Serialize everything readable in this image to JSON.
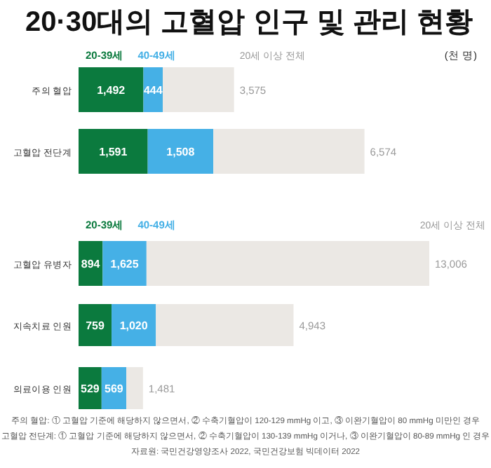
{
  "chart_data": [
    {
      "type": "bar",
      "orientation": "horizontal",
      "stacked": true,
      "legend": "top",
      "title": "20·30대의 고혈압 인구 및 관리 현황",
      "annotations": [
        "(천 명)"
      ],
      "categories": [
        "주의 혈압",
        "고혈압 전단계"
      ],
      "series": [
        {
          "name": "20-39세",
          "color": "#0b7a3e",
          "values": [
            1492,
            1591
          ],
          "value_labels": [
            "1,492",
            "1,591"
          ]
        },
        {
          "name": "40-49세",
          "color": "#45b0e6",
          "values": [
            444,
            1508
          ],
          "value_labels": [
            "444",
            "1,508"
          ]
        },
        {
          "name": "20세 이상 전체",
          "color": "#ebe8e4",
          "values": [
            1639,
            3475
          ]
        }
      ],
      "totals": [
        "3,575",
        "6,574"
      ]
    },
    {
      "type": "bar",
      "orientation": "horizontal",
      "stacked": true,
      "legend": "top",
      "categories": [
        "고혈압 유병자"
      ],
      "series": [
        {
          "name": "20-39세",
          "color": "#0b7a3e",
          "values": [
            894
          ],
          "value_labels": [
            "894"
          ]
        },
        {
          "name": "40-49세",
          "color": "#45b0e6",
          "values": [
            1625
          ],
          "value_labels": [
            "1,625"
          ]
        },
        {
          "name": "20세 이상 전체",
          "color": "#ebe8e4",
          "values": [
            10487
          ]
        }
      ],
      "totals": [
        "13,006"
      ]
    },
    {
      "type": "bar",
      "orientation": "horizontal",
      "stacked": true,
      "categories": [
        "지속치료 인원",
        "의료이용 인원"
      ],
      "series": [
        {
          "color": "#0b7a3e",
          "values": [
            759,
            529
          ],
          "value_labels": [
            "759",
            "529"
          ]
        },
        {
          "color": "#45b0e6",
          "values": [
            1020,
            569
          ],
          "value_labels": [
            "1,020",
            "569"
          ]
        },
        {
          "color": "#ebe8e4",
          "values": [
            3164,
            383
          ]
        }
      ],
      "totals": [
        "4,943",
        "1,481"
      ],
      "annotations": [
        "주의 혈압: ① 고혈압 기준에 해당하지 않으면서, ② 수축기혈압이 120-129 mmHg 이고, ③ 이완기혈압이 80 mmHg 미만인 경우",
        "고혈압 전단계: ① 고혈압 기준에 해당하지 않으면서, ② 수축기혈압이 130-139 mmHg 이거나, ③ 이완기혈압이 80-89 mmHg 인 경우",
        "자료원: 국민건강영양조사 2022, 국민건강보험 빅데이터 2022"
      ]
    }
  ]
}
